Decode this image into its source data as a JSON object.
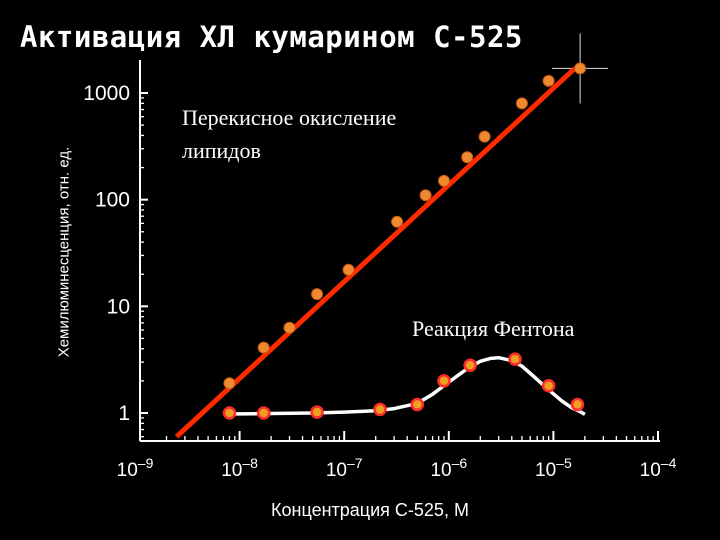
{
  "chart_data": {
    "type": "scatter",
    "title": "Активация ХЛ кумарином С-525",
    "xlabel": "Концентрация С-525, М",
    "ylabel": "Хемилюминесценция, отн. ед.",
    "xscale": "log",
    "yscale": "log",
    "xlim": [
      1e-09,
      0.0001
    ],
    "ylim": [
      0.3,
      5000
    ],
    "x_ticks": [
      {
        "value": 1e-09,
        "label": "10–9"
      },
      {
        "value": 1e-08,
        "label": "10–8"
      },
      {
        "value": 1e-07,
        "label": "10–7"
      },
      {
        "value": 1e-06,
        "label": "10–6"
      },
      {
        "value": 1e-05,
        "label": "10–5"
      },
      {
        "value": 0.0001,
        "label": "10–4"
      }
    ],
    "y_ticks": [
      {
        "value": 1,
        "label": "1"
      },
      {
        "value": 10,
        "label": "10"
      },
      {
        "value": 100,
        "label": "100"
      },
      {
        "value": 1000,
        "label": "1000"
      }
    ],
    "grid": false,
    "series": [
      {
        "name": "Перекисное окисление липидов",
        "color": "#f06a2a",
        "marker": "orange-circle",
        "fit": "red-line",
        "fit_color": "#ff2a00",
        "fit_line": {
          "x": [
            2.5e-09,
            1.6e-05
          ],
          "y": [
            0.6,
            1700
          ]
        },
        "x": [
          8e-09,
          1.7e-08,
          3e-08,
          5.5e-08,
          1.1e-07,
          3.2e-07,
          6e-07,
          9e-07,
          1.5e-06,
          2.2e-06,
          5e-06,
          9e-06,
          1.8e-05
        ],
        "y": [
          1.9,
          4.1,
          6.3,
          13,
          22,
          62,
          110,
          150,
          250,
          390,
          800,
          1300,
          1700
        ]
      },
      {
        "name": "Реакция Фентона",
        "color": "#ff2a2a",
        "marker": "red-ring",
        "fit": "white-curve",
        "fit_color": "#ffffff",
        "curve_x": [
          7e-09,
          1e-08,
          2e-08,
          5e-08,
          1e-07,
          2e-07,
          3e-07,
          5e-07,
          7e-07,
          1e-06,
          1.5e-06,
          2e-06,
          2.5e-06,
          3e-06,
          4e-06,
          5e-06,
          6.5e-06,
          9e-06,
          1.2e-05,
          1.5e-05,
          1.8e-05,
          2e-05
        ],
        "curve_y": [
          0.98,
          0.98,
          0.99,
          1.0,
          1.02,
          1.05,
          1.1,
          1.23,
          1.5,
          1.95,
          2.6,
          3.05,
          3.25,
          3.3,
          3.1,
          2.75,
          2.2,
          1.65,
          1.3,
          1.12,
          1.03,
          0.97
        ],
        "x": [
          8e-09,
          1.7e-08,
          5.5e-08,
          2.2e-07,
          5e-07,
          9e-07,
          1.6e-06,
          4.3e-06,
          9e-06,
          1.7e-05
        ],
        "y": [
          1.0,
          1.0,
          1.02,
          1.08,
          1.2,
          2.0,
          2.8,
          3.2,
          1.8,
          1.2
        ]
      }
    ],
    "annotations": [
      {
        "name": "lipid-annotation",
        "lines": [
          "Перекисное окисление",
          "липидов"
        ]
      },
      {
        "name": "fenton-annotation",
        "lines": [
          "Реакция Фентона"
        ]
      }
    ]
  }
}
